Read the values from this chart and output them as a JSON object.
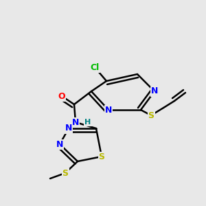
{
  "background_color": "#e8e8e8",
  "bond_color": "#000000",
  "bond_width": 1.8,
  "atom_colors": {
    "C": "#000000",
    "N": "#0000ff",
    "O": "#ff0000",
    "S": "#b8b800",
    "Cl": "#00bb00",
    "H": "#008080"
  },
  "font_size": 9.0,
  "fig_width": 3.0,
  "fig_height": 3.0,
  "dpi": 100,
  "xlim": [
    0,
    300
  ],
  "ylim": [
    0,
    300
  ]
}
